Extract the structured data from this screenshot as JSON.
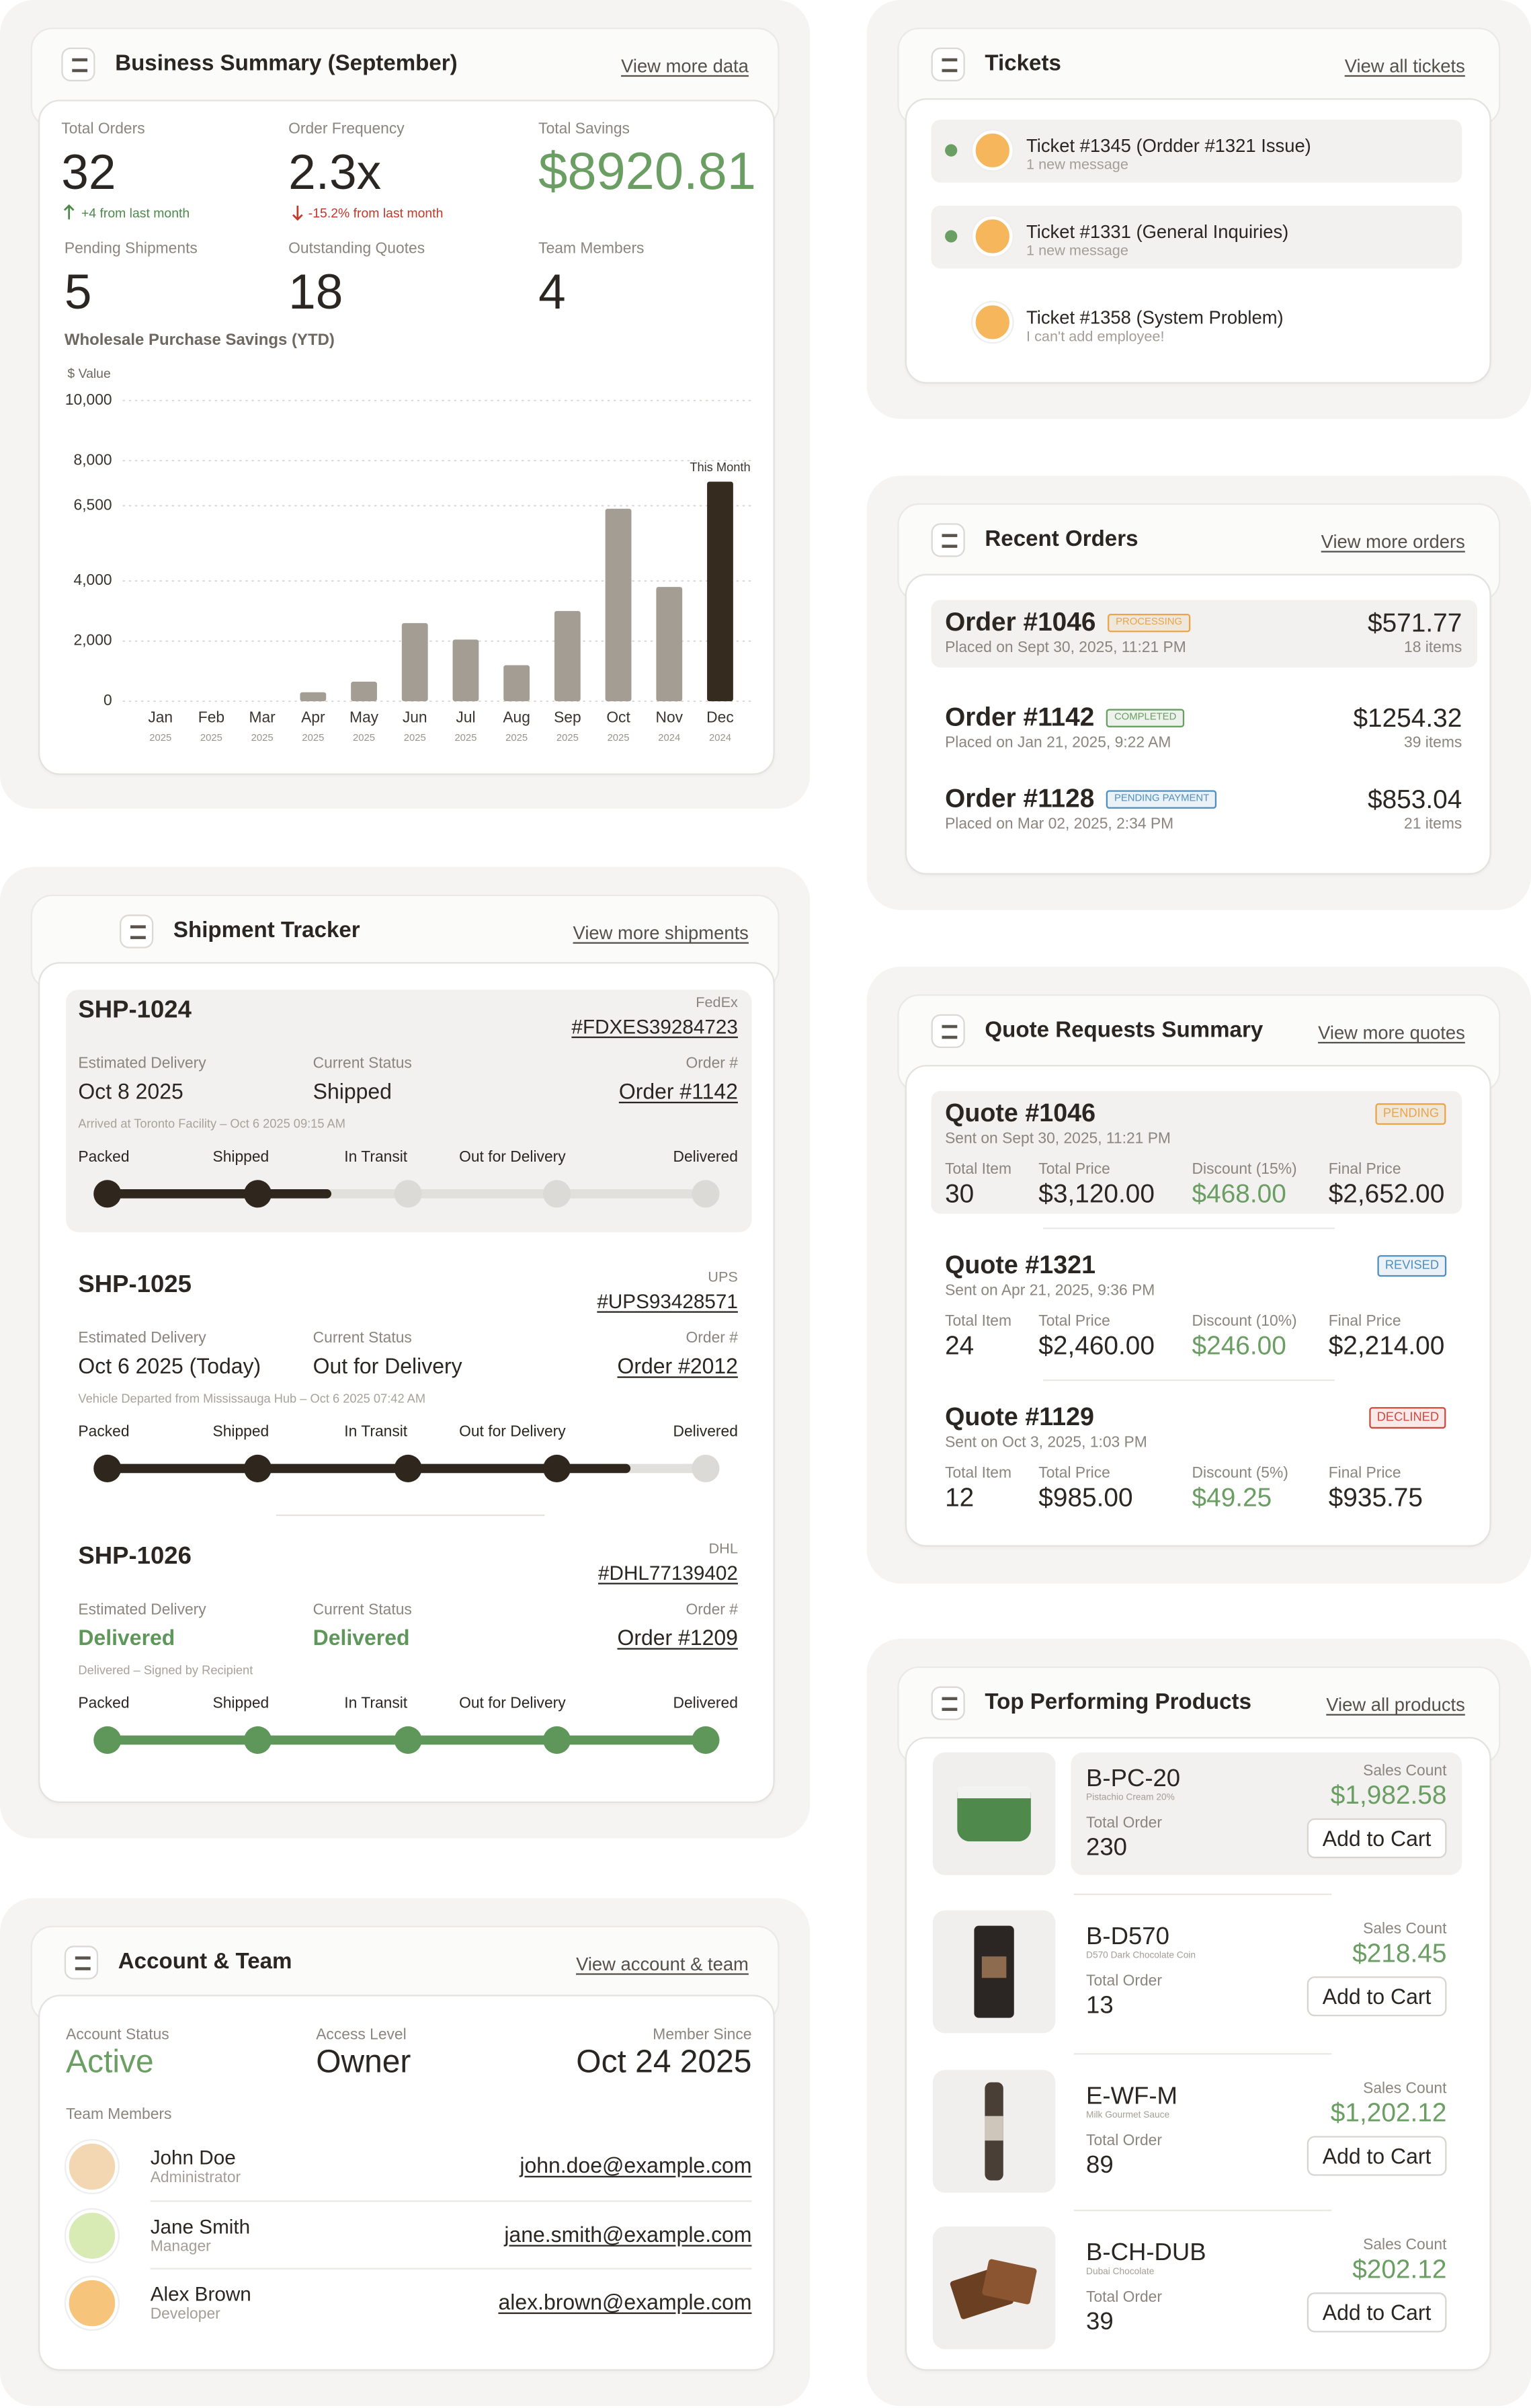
{
  "business_summary": {
    "title": "Business Summary (September)",
    "link": "View more data",
    "metrics": [
      {
        "label": "Total Orders",
        "value": "32",
        "change": "+4 from last month",
        "change_color": "#4b8a4b"
      },
      {
        "label": "Order Frequency",
        "value": "2.3x",
        "change": "-15.2% from last month",
        "change_color": "#c0392b"
      },
      {
        "label": "Total Savings",
        "value": "$8920.81",
        "color": "#6a9e63"
      },
      {
        "label": "Pending Shipments",
        "value": "5"
      },
      {
        "label": "Outstanding Quotes",
        "value": "18"
      },
      {
        "label": "Team Members",
        "value": "4"
      }
    ]
  },
  "chart_data": {
    "type": "bar",
    "title": "Wholesale Purchase Savings (YTD)",
    "y_label": "$ Value",
    "categories": [
      "Jan",
      "Feb",
      "Mar",
      "Apr",
      "May",
      "Jun",
      "Jul",
      "Aug",
      "Sep",
      "Oct",
      "Nov",
      "Dec"
    ],
    "years": [
      "2025",
      "2025",
      "2025",
      "2025",
      "2025",
      "2025",
      "2025",
      "2025",
      "2025",
      "2025",
      "2024",
      "2024"
    ],
    "values": [
      0,
      0,
      0,
      300,
      650,
      2600,
      2050,
      1200,
      3000,
      6400,
      3800,
      7300
    ],
    "colors": [
      "#a49d93",
      "#a49d93",
      "#a49d93",
      "#a49d93",
      "#a49d93",
      "#a49d93",
      "#a49d93",
      "#a49d93",
      "#a49d93",
      "#a49d93",
      "#a49d93",
      "#352b1f"
    ],
    "annotation": {
      "text": "This Month",
      "index": 11
    },
    "ylim": [
      0,
      10000
    ],
    "yticks": [
      0,
      {
        "value": 2000,
        "label": "2,000"
      },
      {
        "value": 4000,
        "label": "4,000"
      },
      {
        "value": 6500,
        "label": "6,500"
      },
      {
        "value": 8000,
        "label": "8,000"
      },
      {
        "value": 10000,
        "label": "10,000"
      }
    ],
    "grid": true
  },
  "tickets": {
    "title": "Tickets",
    "link": "View all tickets",
    "items": [
      {
        "title": "Ticket #1345 (Ordder #1321 Issue)",
        "message": "1 new message",
        "unread": true
      },
      {
        "title": "Ticket #1331 (General Inquiries)",
        "message": "1 new message",
        "unread": true
      },
      {
        "title": "Ticket #1358 (System Problem)",
        "message": "I can't add employee!",
        "unread": false
      }
    ]
  },
  "recent_orders": {
    "title": "Recent Orders",
    "link": "View more orders",
    "items": [
      {
        "id": "Order #1046",
        "status": "PROCESSING",
        "status_color": "#e8a54b",
        "placed": "Placed on Sept 30, 2025, 11:21 PM",
        "total": "$571.77",
        "items": "18 items"
      },
      {
        "id": "Order #1142",
        "status": "COMPLETED",
        "status_color": "#6a9e63",
        "placed": "Placed on Jan 21, 2025, 9:22 AM",
        "total": "$1254.32",
        "items": "39 items"
      },
      {
        "id": "Order #1128",
        "status": "PENDING PAYMENT",
        "status_color": "#4f8fbf",
        "placed": "Placed on Mar 02, 2025, 2:34 PM",
        "total": "$853.04",
        "items": "21 items"
      }
    ]
  },
  "shipment_tracker": {
    "title": "Shipment Tracker",
    "link": "View more shipments",
    "labels": [
      "Estimated Delivery",
      "Current Status",
      "Order #"
    ],
    "steps": [
      "Packed",
      "Shipped",
      "In Transit",
      "Out for Delivery",
      "Delivered"
    ],
    "items": [
      {
        "id": "SHP-1024",
        "carrier": "FedEx",
        "tracking": "#FDXES39284723",
        "delivery": "Oct 8 2025",
        "status": "Shipped",
        "order": "Order #1142",
        "note": "Arrived at Toronto Facility – Oct 6 2025 09:15 AM",
        "completed_steps": 2
      },
      {
        "id": "SHP-1025",
        "carrier": "UPS",
        "tracking": "#UPS93428571",
        "delivery": "Oct 6 2025 (Today)",
        "status": "Out for Delivery",
        "order": "Order #2012",
        "note": "Vehicle Departed from Mississauga Hub – Oct 6 2025 07:42 AM",
        "completed_steps": 4
      },
      {
        "id": "SHP-1026",
        "carrier": "DHL",
        "tracking": "#DHL77139402",
        "delivery": "Delivered",
        "status": "Delivered",
        "order": "Order #1209",
        "note": "Delivered – Signed by Recipient",
        "completed_steps": 5
      }
    ]
  },
  "quote_requests": {
    "title": "Quote Requests Summary",
    "link": "View more quotes",
    "items": [
      {
        "id": "Quote #1046",
        "status": "PENDING",
        "status_color": "#e8a54b",
        "sent": "Sent on Sept 30, 2025, 11:21 PM",
        "fields": [
          {
            "label": "Total Item",
            "value": "30"
          },
          {
            "label": "Total Price",
            "value": "$3,120.00"
          },
          {
            "label": "Discount (15%)",
            "value": "$468.00"
          },
          {
            "label": "Final Price",
            "value": "$2,652.00"
          }
        ]
      },
      {
        "id": "Quote #1321",
        "status": "REVISED",
        "status_color": "#4f8fbf",
        "sent": "Sent on Apr 21, 2025, 9:36 PM",
        "fields": [
          {
            "label": "Total Item",
            "value": "24"
          },
          {
            "label": "Total Price",
            "value": "$2,460.00"
          },
          {
            "label": "Discount (10%)",
            "value": "$246.00"
          },
          {
            "label": "Final Price",
            "value": "$2,214.00"
          }
        ]
      },
      {
        "id": "Quote #1129",
        "status": "DECLINED",
        "status_color": "#d0493f",
        "sent": "Sent on Oct 3, 2025, 1:03 PM",
        "fields": [
          {
            "label": "Total Item",
            "value": "12"
          },
          {
            "label": "Total Price",
            "value": "$985.00"
          },
          {
            "label": "Discount (5%)",
            "value": "$49.25"
          },
          {
            "label": "Final Price",
            "value": "$935.75"
          }
        ]
      }
    ]
  },
  "account_team": {
    "title": "Account & Team",
    "link": "View account & team",
    "fields": [
      {
        "label": "Account Status",
        "value": "Active"
      },
      {
        "label": "Access Level",
        "value": "Owner"
      },
      {
        "label": "Member Since",
        "value": "Oct 24 2025"
      }
    ],
    "members_label": "Team Members",
    "members": [
      {
        "name": "John Doe",
        "role": "Administrator",
        "email": "john.doe@example.com"
      },
      {
        "name": "Jane Smith",
        "role": "Manager",
        "email": "jane.smith@example.com"
      },
      {
        "name": "Alex Brown",
        "role": "Developer",
        "email": "alex.brown@example.com"
      }
    ]
  },
  "top_products": {
    "title": "Top Performing Products",
    "link": "View all products",
    "total_label": "Total Order",
    "sales_label": "Sales Count",
    "button": "Add to Cart",
    "items": [
      {
        "sku": "B-PC-20",
        "name": "Pistachio Cream 20%",
        "total": "230",
        "sales": "$1,982.58"
      },
      {
        "sku": "B-D570",
        "name": "D570 Dark Chocolate Coin",
        "total": "13",
        "sales": "$218.45"
      },
      {
        "sku": "E-WF-M",
        "name": "Milk Gourmet Sauce",
        "total": "89",
        "sales": "$1,202.12"
      },
      {
        "sku": "B-CH-DUB",
        "name": "Dubai Chocolate",
        "total": "39",
        "sales": "$202.12"
      }
    ]
  }
}
